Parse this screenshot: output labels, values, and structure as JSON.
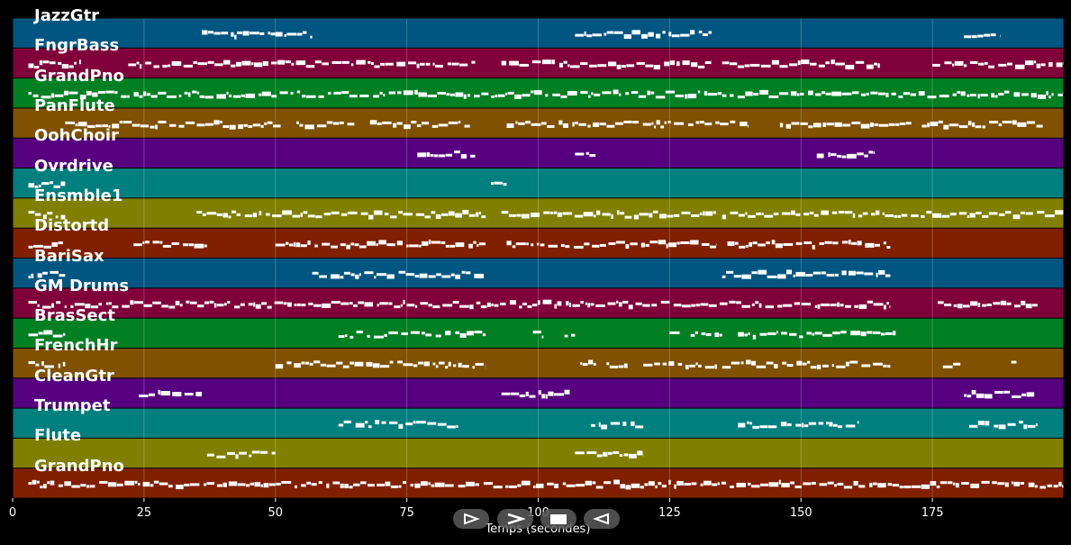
{
  "tracks": [
    {
      "label": "JazzGtr",
      "color": "#005680"
    },
    {
      "label": "FngrBass",
      "color": "#80003a"
    },
    {
      "label": "GrandPno",
      "color": "#007f23"
    },
    {
      "label": "PanFlute",
      "color": "#7f5100"
    },
    {
      "label": "OohChoir",
      "color": "#560080"
    },
    {
      "label": "Ovrdrive",
      "color": "#007f7f"
    },
    {
      "label": "Ensmble1",
      "color": "#807f00"
    },
    {
      "label": "Distortd",
      "color": "#802000"
    },
    {
      "label": "BariSax",
      "color": "#005680"
    },
    {
      "label": "GM Drums",
      "color": "#80003a"
    },
    {
      "label": "BrasSect",
      "color": "#007f23"
    },
    {
      "label": "FrenchHr",
      "color": "#7f5100"
    },
    {
      "label": "CleanGtr",
      "color": "#560080"
    },
    {
      "label": "Trumpet",
      "color": "#007f7f"
    },
    {
      "label": "Flute",
      "color": "#807f00"
    },
    {
      "label": "GrandPno",
      "color": "#802000"
    }
  ],
  "axis": {
    "xlabel": "Temps (secondes)",
    "xlim": [
      0,
      200
    ],
    "ticks": [
      "0",
      "25",
      "50",
      "75",
      "100",
      "125",
      "150",
      "175"
    ],
    "tick_values": [
      0,
      25,
      50,
      75,
      100,
      125,
      150,
      175
    ],
    "grid": true
  },
  "note_segments": [
    [
      [
        36,
        50
      ],
      [
        50,
        57
      ],
      [
        107,
        133
      ],
      [
        181,
        188
      ]
    ],
    [
      [
        3,
        13
      ],
      [
        22,
        88
      ],
      [
        93,
        133
      ],
      [
        135,
        165
      ],
      [
        175,
        200
      ]
    ],
    [
      [
        3,
        200
      ]
    ],
    [
      [
        10,
        51
      ],
      [
        54,
        65
      ],
      [
        68,
        87
      ],
      [
        94,
        140
      ],
      [
        146,
        171
      ],
      [
        173,
        196
      ]
    ],
    [
      [
        77,
        88
      ],
      [
        107,
        111
      ],
      [
        153,
        164
      ]
    ],
    [
      [
        3,
        10
      ],
      [
        91,
        94
      ]
    ],
    [
      [
        3,
        10
      ],
      [
        35,
        90
      ],
      [
        93,
        134
      ],
      [
        135,
        200
      ]
    ],
    [
      [
        3,
        10
      ],
      [
        23,
        37
      ],
      [
        50,
        90
      ],
      [
        94,
        134
      ],
      [
        136,
        167
      ]
    ],
    [
      [
        3,
        10
      ],
      [
        57,
        90
      ],
      [
        135,
        167
      ]
    ],
    [
      [
        3,
        167
      ],
      [
        176,
        195
      ]
    ],
    [
      [
        3,
        10
      ],
      [
        62,
        90
      ],
      [
        99,
        101
      ],
      [
        105,
        107
      ],
      [
        125,
        127
      ],
      [
        129,
        135
      ],
      [
        138,
        168
      ]
    ],
    [
      [
        3,
        10
      ],
      [
        50,
        90
      ],
      [
        108,
        111
      ],
      [
        113,
        117
      ],
      [
        120,
        134
      ],
      [
        135,
        167
      ],
      [
        177,
        181
      ],
      [
        190,
        191
      ]
    ],
    [
      [
        24,
        36
      ],
      [
        93,
        106
      ],
      [
        181,
        195
      ]
    ],
    [
      [
        62,
        85
      ],
      [
        110,
        120
      ],
      [
        138,
        161
      ],
      [
        182,
        195
      ]
    ],
    [
      [
        37,
        50
      ],
      [
        107,
        120
      ]
    ],
    [
      [
        3,
        200
      ]
    ]
  ],
  "controls": {
    "play": "play-icon",
    "fast_forward": "fast-forward-icon",
    "stop": "stop-icon",
    "rewind": "rewind-icon"
  }
}
